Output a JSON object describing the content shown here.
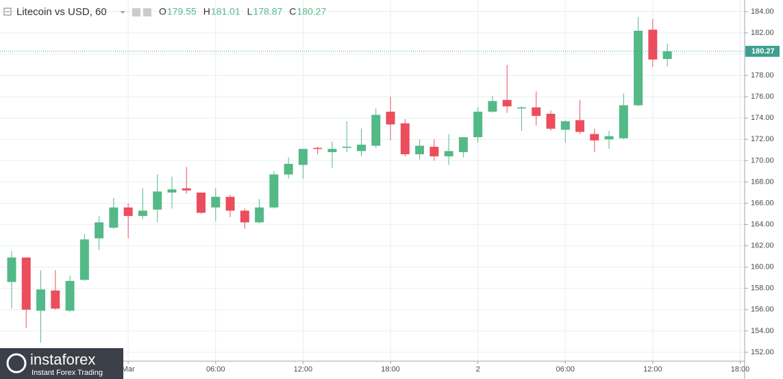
{
  "header": {
    "title": "Litecoin vs USD, 60",
    "fields": [
      {
        "label": "O",
        "value": 179.55
      },
      {
        "label": "H",
        "value": 181.01
      },
      {
        "label": "L",
        "value": 178.87
      },
      {
        "label": "C",
        "value": 180.27
      }
    ]
  },
  "logo": {
    "name": "instaforex",
    "tagline": "Instant Forex Trading"
  },
  "chart_data": {
    "type": "candlestick",
    "up_color": "#53b987",
    "down_color": "#eb4d5c",
    "grid": true,
    "categories": [
      null,
      null,
      null,
      null,
      null,
      null,
      null,
      null,
      "Mar",
      null,
      null,
      null,
      null,
      null,
      "06:00",
      null,
      null,
      null,
      null,
      null,
      "12:00",
      null,
      null,
      null,
      null,
      null,
      "18:00",
      null,
      null,
      null,
      null,
      null,
      "2",
      null,
      null,
      null,
      null,
      null,
      "06:00",
      null,
      null,
      null,
      null,
      null,
      "12:00",
      null,
      null,
      null,
      null,
      null,
      "18:00"
    ],
    "open": [
      158.6,
      160.9,
      155.9,
      157.8,
      155.9,
      158.8,
      162.7,
      163.7,
      165.6,
      164.8,
      165.4,
      167.0,
      167.4,
      167.0,
      165.6,
      166.6,
      165.3,
      164.2,
      165.6,
      168.7,
      169.6,
      171.2,
      170.8,
      171.2,
      170.9,
      171.4,
      174.6,
      173.5,
      170.6,
      171.3,
      170.4,
      170.8,
      172.2,
      174.6,
      175.7,
      174.9,
      175.0,
      174.4,
      172.9,
      173.8,
      172.5,
      172.0,
      172.1,
      175.2,
      182.3,
      179.55,
      null,
      null,
      null,
      null,
      null
    ],
    "high": [
      161.5,
      160.9,
      159.7,
      159.7,
      159.2,
      163.1,
      164.8,
      166.5,
      166.0,
      167.4,
      168.7,
      168.5,
      169.4,
      167.0,
      167.4,
      166.8,
      165.5,
      166.4,
      169.0,
      170.3,
      171.1,
      171.3,
      171.8,
      173.7,
      173.0,
      174.9,
      176.0,
      173.9,
      172.0,
      172.0,
      172.5,
      172.2,
      175.0,
      176.1,
      179.0,
      175.1,
      176.5,
      174.7,
      173.8,
      175.7,
      173.0,
      172.8,
      176.3,
      183.5,
      183.3,
      181.01,
      null,
      null,
      null,
      null,
      null
    ],
    "low": [
      156.1,
      154.3,
      152.9,
      156.0,
      155.8,
      158.7,
      161.6,
      163.6,
      162.7,
      164.5,
      164.2,
      165.5,
      166.9,
      165.0,
      164.3,
      164.7,
      163.6,
      164.1,
      165.5,
      168.3,
      168.3,
      170.6,
      169.3,
      170.8,
      170.4,
      171.2,
      171.9,
      170.4,
      170.1,
      170.0,
      169.6,
      170.3,
      171.7,
      174.5,
      174.5,
      172.8,
      173.3,
      172.8,
      171.7,
      172.5,
      170.8,
      171.1,
      172.0,
      175.1,
      178.8,
      178.87,
      null,
      null,
      null,
      null,
      null
    ],
    "close": [
      160.9,
      156.0,
      157.9,
      156.1,
      158.7,
      162.6,
      164.2,
      165.6,
      164.8,
      165.3,
      167.1,
      167.3,
      167.2,
      165.1,
      166.6,
      165.3,
      164.2,
      165.6,
      168.7,
      169.7,
      171.1,
      171.1,
      171.1,
      171.3,
      171.5,
      174.3,
      173.4,
      170.6,
      171.4,
      170.4,
      170.9,
      172.2,
      174.6,
      175.6,
      175.1,
      175.0,
      174.2,
      173.0,
      173.7,
      172.7,
      171.9,
      172.3,
      175.2,
      182.2,
      179.5,
      180.27,
      null,
      null,
      null,
      null,
      null
    ],
    "last_price": 180.27,
    "ylim": [
      151.16,
      185.09
    ],
    "yticks": [
      {
        "value": 152,
        "label": "152.00"
      },
      {
        "value": 154,
        "label": "154.00"
      },
      {
        "value": 156,
        "label": "156.00"
      },
      {
        "value": 158,
        "label": "158.00"
      },
      {
        "value": 160,
        "label": "160.00"
      },
      {
        "value": 162,
        "label": "162.00"
      },
      {
        "value": 164,
        "label": "164.00"
      },
      {
        "value": 166,
        "label": "166.00"
      },
      {
        "value": 168,
        "label": "168.00"
      },
      {
        "value": 170,
        "label": "170.00"
      },
      {
        "value": 172,
        "label": "172.00"
      },
      {
        "value": 174,
        "label": "174.00"
      },
      {
        "value": 176,
        "label": "176.00"
      },
      {
        "value": 178,
        "label": "178.00"
      },
      {
        "value": 180,
        "label": "180.00"
      },
      {
        "value": 182,
        "label": "182.00"
      },
      {
        "value": 184,
        "label": "184.00"
      }
    ]
  }
}
